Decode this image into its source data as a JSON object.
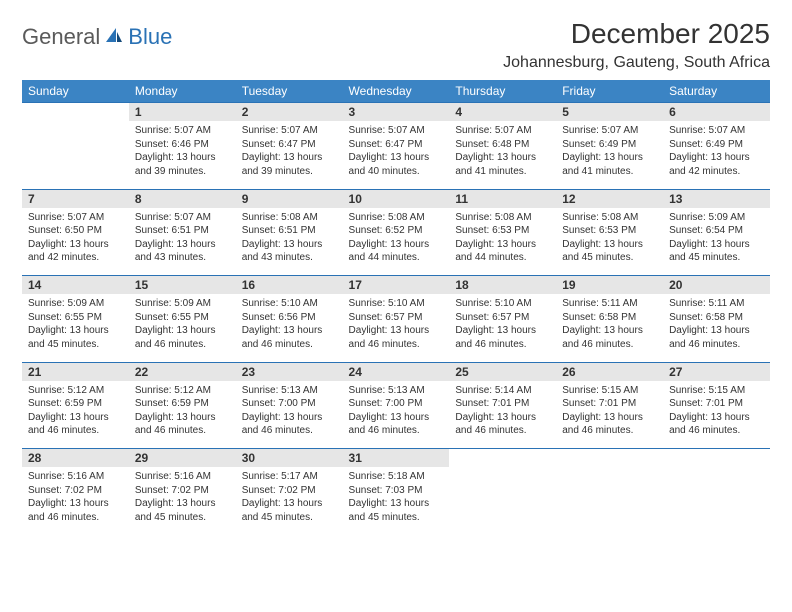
{
  "brand": {
    "part1": "General",
    "part2": "Blue"
  },
  "title": "December 2025",
  "location": "Johannesburg, Gauteng, South Africa",
  "day_headers": [
    "Sunday",
    "Monday",
    "Tuesday",
    "Wednesday",
    "Thursday",
    "Friday",
    "Saturday"
  ],
  "colors": {
    "header_bg": "#3b84c4",
    "header_text": "#ffffff",
    "daynum_bg": "#e6e6e6",
    "row_border": "#2a72b5",
    "text": "#333333",
    "logo_gray": "#5a5a5a",
    "logo_blue": "#2a72b5"
  },
  "weeks": [
    [
      {
        "n": "",
        "sr": "",
        "ss": "",
        "dl": ""
      },
      {
        "n": "1",
        "sr": "Sunrise: 5:07 AM",
        "ss": "Sunset: 6:46 PM",
        "dl": "Daylight: 13 hours and 39 minutes."
      },
      {
        "n": "2",
        "sr": "Sunrise: 5:07 AM",
        "ss": "Sunset: 6:47 PM",
        "dl": "Daylight: 13 hours and 39 minutes."
      },
      {
        "n": "3",
        "sr": "Sunrise: 5:07 AM",
        "ss": "Sunset: 6:47 PM",
        "dl": "Daylight: 13 hours and 40 minutes."
      },
      {
        "n": "4",
        "sr": "Sunrise: 5:07 AM",
        "ss": "Sunset: 6:48 PM",
        "dl": "Daylight: 13 hours and 41 minutes."
      },
      {
        "n": "5",
        "sr": "Sunrise: 5:07 AM",
        "ss": "Sunset: 6:49 PM",
        "dl": "Daylight: 13 hours and 41 minutes."
      },
      {
        "n": "6",
        "sr": "Sunrise: 5:07 AM",
        "ss": "Sunset: 6:49 PM",
        "dl": "Daylight: 13 hours and 42 minutes."
      }
    ],
    [
      {
        "n": "7",
        "sr": "Sunrise: 5:07 AM",
        "ss": "Sunset: 6:50 PM",
        "dl": "Daylight: 13 hours and 42 minutes."
      },
      {
        "n": "8",
        "sr": "Sunrise: 5:07 AM",
        "ss": "Sunset: 6:51 PM",
        "dl": "Daylight: 13 hours and 43 minutes."
      },
      {
        "n": "9",
        "sr": "Sunrise: 5:08 AM",
        "ss": "Sunset: 6:51 PM",
        "dl": "Daylight: 13 hours and 43 minutes."
      },
      {
        "n": "10",
        "sr": "Sunrise: 5:08 AM",
        "ss": "Sunset: 6:52 PM",
        "dl": "Daylight: 13 hours and 44 minutes."
      },
      {
        "n": "11",
        "sr": "Sunrise: 5:08 AM",
        "ss": "Sunset: 6:53 PM",
        "dl": "Daylight: 13 hours and 44 minutes."
      },
      {
        "n": "12",
        "sr": "Sunrise: 5:08 AM",
        "ss": "Sunset: 6:53 PM",
        "dl": "Daylight: 13 hours and 45 minutes."
      },
      {
        "n": "13",
        "sr": "Sunrise: 5:09 AM",
        "ss": "Sunset: 6:54 PM",
        "dl": "Daylight: 13 hours and 45 minutes."
      }
    ],
    [
      {
        "n": "14",
        "sr": "Sunrise: 5:09 AM",
        "ss": "Sunset: 6:55 PM",
        "dl": "Daylight: 13 hours and 45 minutes."
      },
      {
        "n": "15",
        "sr": "Sunrise: 5:09 AM",
        "ss": "Sunset: 6:55 PM",
        "dl": "Daylight: 13 hours and 46 minutes."
      },
      {
        "n": "16",
        "sr": "Sunrise: 5:10 AM",
        "ss": "Sunset: 6:56 PM",
        "dl": "Daylight: 13 hours and 46 minutes."
      },
      {
        "n": "17",
        "sr": "Sunrise: 5:10 AM",
        "ss": "Sunset: 6:57 PM",
        "dl": "Daylight: 13 hours and 46 minutes."
      },
      {
        "n": "18",
        "sr": "Sunrise: 5:10 AM",
        "ss": "Sunset: 6:57 PM",
        "dl": "Daylight: 13 hours and 46 minutes."
      },
      {
        "n": "19",
        "sr": "Sunrise: 5:11 AM",
        "ss": "Sunset: 6:58 PM",
        "dl": "Daylight: 13 hours and 46 minutes."
      },
      {
        "n": "20",
        "sr": "Sunrise: 5:11 AM",
        "ss": "Sunset: 6:58 PM",
        "dl": "Daylight: 13 hours and 46 minutes."
      }
    ],
    [
      {
        "n": "21",
        "sr": "Sunrise: 5:12 AM",
        "ss": "Sunset: 6:59 PM",
        "dl": "Daylight: 13 hours and 46 minutes."
      },
      {
        "n": "22",
        "sr": "Sunrise: 5:12 AM",
        "ss": "Sunset: 6:59 PM",
        "dl": "Daylight: 13 hours and 46 minutes."
      },
      {
        "n": "23",
        "sr": "Sunrise: 5:13 AM",
        "ss": "Sunset: 7:00 PM",
        "dl": "Daylight: 13 hours and 46 minutes."
      },
      {
        "n": "24",
        "sr": "Sunrise: 5:13 AM",
        "ss": "Sunset: 7:00 PM",
        "dl": "Daylight: 13 hours and 46 minutes."
      },
      {
        "n": "25",
        "sr": "Sunrise: 5:14 AM",
        "ss": "Sunset: 7:01 PM",
        "dl": "Daylight: 13 hours and 46 minutes."
      },
      {
        "n": "26",
        "sr": "Sunrise: 5:15 AM",
        "ss": "Sunset: 7:01 PM",
        "dl": "Daylight: 13 hours and 46 minutes."
      },
      {
        "n": "27",
        "sr": "Sunrise: 5:15 AM",
        "ss": "Sunset: 7:01 PM",
        "dl": "Daylight: 13 hours and 46 minutes."
      }
    ],
    [
      {
        "n": "28",
        "sr": "Sunrise: 5:16 AM",
        "ss": "Sunset: 7:02 PM",
        "dl": "Daylight: 13 hours and 46 minutes."
      },
      {
        "n": "29",
        "sr": "Sunrise: 5:16 AM",
        "ss": "Sunset: 7:02 PM",
        "dl": "Daylight: 13 hours and 45 minutes."
      },
      {
        "n": "30",
        "sr": "Sunrise: 5:17 AM",
        "ss": "Sunset: 7:02 PM",
        "dl": "Daylight: 13 hours and 45 minutes."
      },
      {
        "n": "31",
        "sr": "Sunrise: 5:18 AM",
        "ss": "Sunset: 7:03 PM",
        "dl": "Daylight: 13 hours and 45 minutes."
      },
      {
        "n": "",
        "sr": "",
        "ss": "",
        "dl": ""
      },
      {
        "n": "",
        "sr": "",
        "ss": "",
        "dl": ""
      },
      {
        "n": "",
        "sr": "",
        "ss": "",
        "dl": ""
      }
    ]
  ]
}
